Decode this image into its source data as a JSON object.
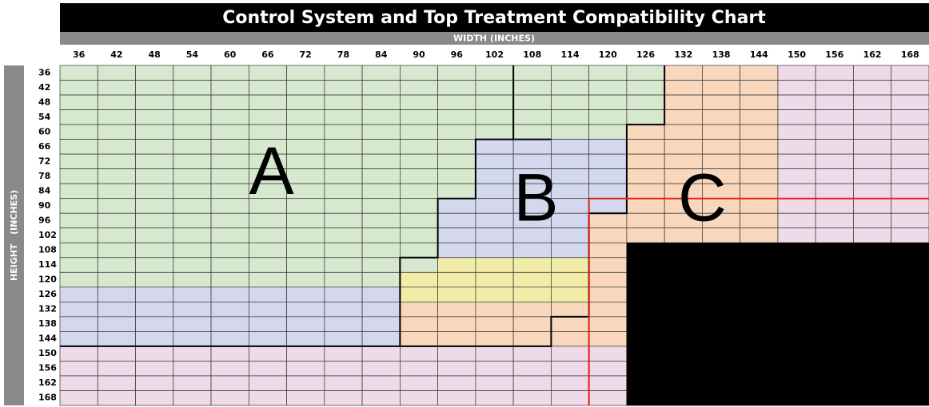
{
  "title": "Control System and Top Treatment Compatibility Chart",
  "width_label": "WIDTH (INCHES)",
  "height_label": "HEIGHT   (INCHES)",
  "columns": [
    36,
    42,
    48,
    54,
    60,
    66,
    72,
    78,
    84,
    90,
    96,
    102,
    108,
    114,
    120,
    126,
    132,
    138,
    144,
    150,
    156,
    162,
    168
  ],
  "rows": [
    36,
    42,
    48,
    54,
    60,
    66,
    72,
    78,
    84,
    90,
    96,
    102,
    108,
    114,
    120,
    126,
    132,
    138,
    144,
    150,
    156,
    162,
    168
  ],
  "palette": {
    "G": "#d6e9cf",
    "B": "#d3d8ee",
    "O": "#f8d7bd",
    "P": "#efdaea",
    "Y": "#f1eca8",
    "K": "#000000"
  },
  "cells": [
    "GGGGGGGGGGGGGGGGOOOPPPP",
    "GGGGGGGGGGGGGGGGOOOPPPP",
    "GGGGGGGGGGGGGGGGOOOPPPP",
    "GGGGGGGGGGGGGGGGOOOPPPP",
    "GGGGGGGGGGGGGGGOOOOPPPP",
    "GGGGGGGGGGGBBBBOOOOPPPP",
    "GGGGGGGGGGGBBBBOOOOPPPP",
    "GGGGGGGGGGGBBBBOOOOPPPP",
    "GGGGGGGGGGGBBBBOOOOPPPP",
    "GGGGGGGGGGBBBBBOOOOPPPP",
    "GGGGGGGGGGBBBBOOOOOPPPP",
    "GGGGGGGGGGBBBBOOOOOPPPP",
    "GGGGGGGGGGBBBBOKKKKKKKK",
    "GGGGGGGGGGYYYYOKKKKKKKK",
    "GGGGGGGGGYYYYYOKKKKKKKK",
    "BBBBBBBBBYYYYYOKKKKKKKK",
    "BBBBBBBBBOOOOOOKKKKKKKK",
    "BBBBBBBBBOOOOOOKKKKKKKK",
    "BBBBBBBBBOOOOOOKKKKKKKK",
    "PPPPPPPPPPPPPPPKKKKKKKK",
    "PPPPPPPPPPPPPPPKKKKKKKK",
    "PPPPPPPPPPPPPPPKKKKKKKK",
    "PPPPPPPPPPPPPPPKKKKKKKK"
  ],
  "regions": [
    "A",
    "B",
    "C"
  ]
}
